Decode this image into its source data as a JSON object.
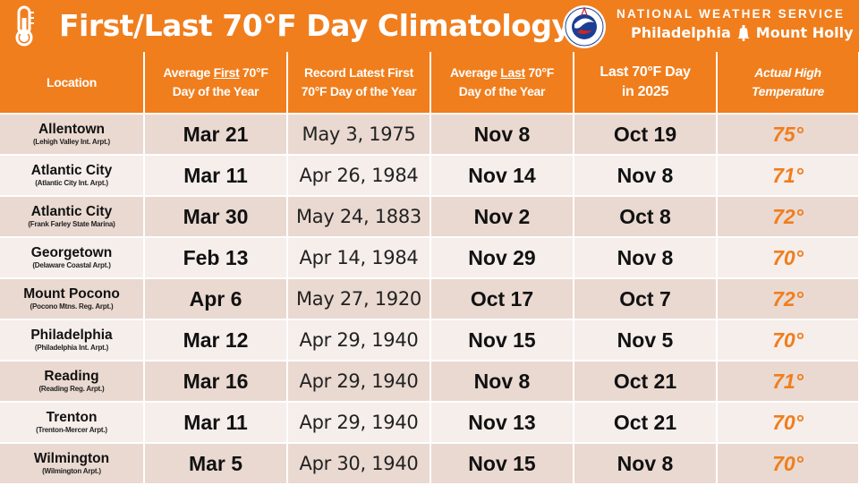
{
  "header": {
    "title": "First/Last 70°F Day Climatology",
    "agency": "NATIONAL WEATHER SERVICE",
    "office_left": "Philadelphia",
    "office_right": "Mount Holly",
    "colors": {
      "band": "#f07e1d",
      "row_dark": "#ead9d1",
      "row_light": "#f5eeeb",
      "high_text": "#f07e1d"
    },
    "icons": [
      "thermometer-icon",
      "nws-logo-icon",
      "liberty-bell-icon"
    ]
  },
  "columns": {
    "location": "Location",
    "avg_first_a": "Average ",
    "avg_first_u": "First",
    "avg_first_b": " 70°F",
    "avg_first_c": "Day of the Year",
    "record_a": "Record Latest First",
    "record_b": "70°F Day of the Year",
    "avg_last_a": "Average ",
    "avg_last_u": "Last",
    "avg_last_b": " 70°F",
    "avg_last_c": "Day of the Year",
    "last_a": "Last 70°F Day",
    "last_b": "in 2025",
    "actual_a": "Actual High",
    "actual_b": "Temperature"
  },
  "rows": [
    {
      "location": "Allentown",
      "station": "(Lehigh Valley Int. Arpt.)",
      "avg_first": "Mar 21",
      "record_latest_first": "May 3, 1975",
      "avg_last": "Nov 8",
      "last_2025": "Oct 19",
      "actual_high": "75°"
    },
    {
      "location": "Atlantic City",
      "station": "(Atlantic City Int. Arpt.)",
      "avg_first": "Mar 11",
      "record_latest_first": "Apr 26, 1984",
      "avg_last": "Nov 14",
      "last_2025": "Nov 8",
      "actual_high": "71°"
    },
    {
      "location": "Atlantic City",
      "station": "(Frank Farley State Marina)",
      "avg_first": "Mar 30",
      "record_latest_first": "May 24, 1883",
      "avg_last": "Nov 2",
      "last_2025": "Oct 8",
      "actual_high": "72°"
    },
    {
      "location": "Georgetown",
      "station": "(Delaware Coastal Arpt.)",
      "avg_first": "Feb 13",
      "record_latest_first": "Apr 14, 1984",
      "avg_last": "Nov 29",
      "last_2025": "Nov 8",
      "actual_high": "70°"
    },
    {
      "location": "Mount Pocono",
      "station": "(Pocono Mtns. Reg. Arpt.)",
      "avg_first": "Apr 6",
      "record_latest_first": "May 27, 1920",
      "avg_last": "Oct 17",
      "last_2025": "Oct 7",
      "actual_high": "72°"
    },
    {
      "location": "Philadelphia",
      "station": "(Philadelphia Int. Arpt.)",
      "avg_first": "Mar 12",
      "record_latest_first": "Apr 29, 1940",
      "avg_last": "Nov 15",
      "last_2025": "Nov 5",
      "actual_high": "70°"
    },
    {
      "location": "Reading",
      "station": "(Reading Reg. Arpt.)",
      "avg_first": "Mar 16",
      "record_latest_first": "Apr 29, 1940",
      "avg_last": "Nov 8",
      "last_2025": "Oct 21",
      "actual_high": "71°"
    },
    {
      "location": "Trenton",
      "station": "(Trenton-Mercer Arpt.)",
      "avg_first": "Mar 11",
      "record_latest_first": "Apr 29, 1940",
      "avg_last": "Nov 13",
      "last_2025": "Oct 21",
      "actual_high": "70°"
    },
    {
      "location": "Wilmington",
      "station": "(Wilmington Arpt.)",
      "avg_first": "Mar 5",
      "record_latest_first": "Apr 30, 1940",
      "avg_last": "Nov 15",
      "last_2025": "Nov 8",
      "actual_high": "70°"
    }
  ]
}
